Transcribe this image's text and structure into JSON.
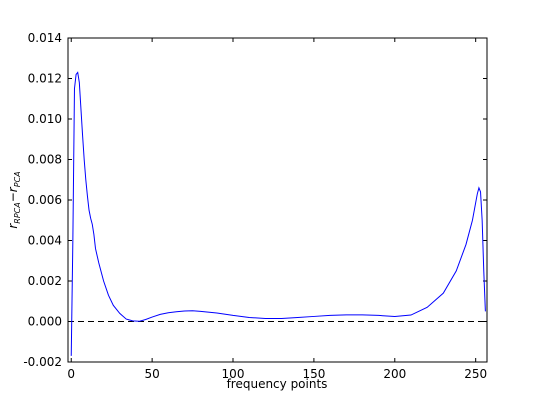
{
  "chart_data": {
    "type": "line",
    "xlabel": "frequency points",
    "ylabel": {
      "r1": "r",
      "sub1": "RPCA",
      "minus": "−",
      "r2": "r",
      "sub2": "PCA"
    },
    "x": [
      0,
      1,
      2,
      3,
      4,
      5,
      6,
      7,
      8,
      9,
      10,
      11,
      12,
      13,
      14,
      15,
      17,
      20,
      23,
      26,
      30,
      34,
      38,
      42,
      46,
      50,
      55,
      60,
      65,
      70,
      75,
      80,
      90,
      100,
      110,
      120,
      130,
      140,
      150,
      160,
      170,
      180,
      190,
      200,
      210,
      220,
      230,
      238,
      244,
      248,
      251,
      252,
      253,
      254,
      255,
      256
    ],
    "series": [
      {
        "color": "#0000ff",
        "values": [
          -0.0017,
          0.004,
          0.0115,
          0.0122,
          0.0123,
          0.0118,
          0.0105,
          0.0092,
          0.008,
          0.007,
          0.0062,
          0.0055,
          0.0051,
          0.0048,
          0.0043,
          0.0036,
          0.0029,
          0.002,
          0.0013,
          0.0008,
          0.0004,
          0.00012,
          3e-05,
          1e-05,
          0.0001,
          0.00022,
          0.00035,
          0.00043,
          0.00048,
          0.00052,
          0.00053,
          0.0005,
          0.00042,
          0.0003,
          0.0002,
          0.00015,
          0.00015,
          0.0002,
          0.00025,
          0.0003,
          0.00033,
          0.00033,
          0.0003,
          0.00025,
          0.00032,
          0.0007,
          0.0014,
          0.0025,
          0.0038,
          0.005,
          0.0063,
          0.0066,
          0.0064,
          0.005,
          0.0025,
          0.0005
        ]
      }
    ],
    "hline": {
      "value": 0,
      "color": "#000000",
      "style": "dashed"
    },
    "xlim": [
      -2,
      257
    ],
    "xticks": [
      0,
      50,
      100,
      150,
      200,
      250
    ],
    "ylim": [
      -0.002,
      0.014
    ],
    "yticks": [
      -0.002,
      {
        "value": 0,
        "label": "0.000"
      },
      0.002,
      0.004,
      0.006,
      0.008,
      {
        "value": 0.01,
        "label": "0.010"
      },
      0.012,
      0.014
    ]
  }
}
